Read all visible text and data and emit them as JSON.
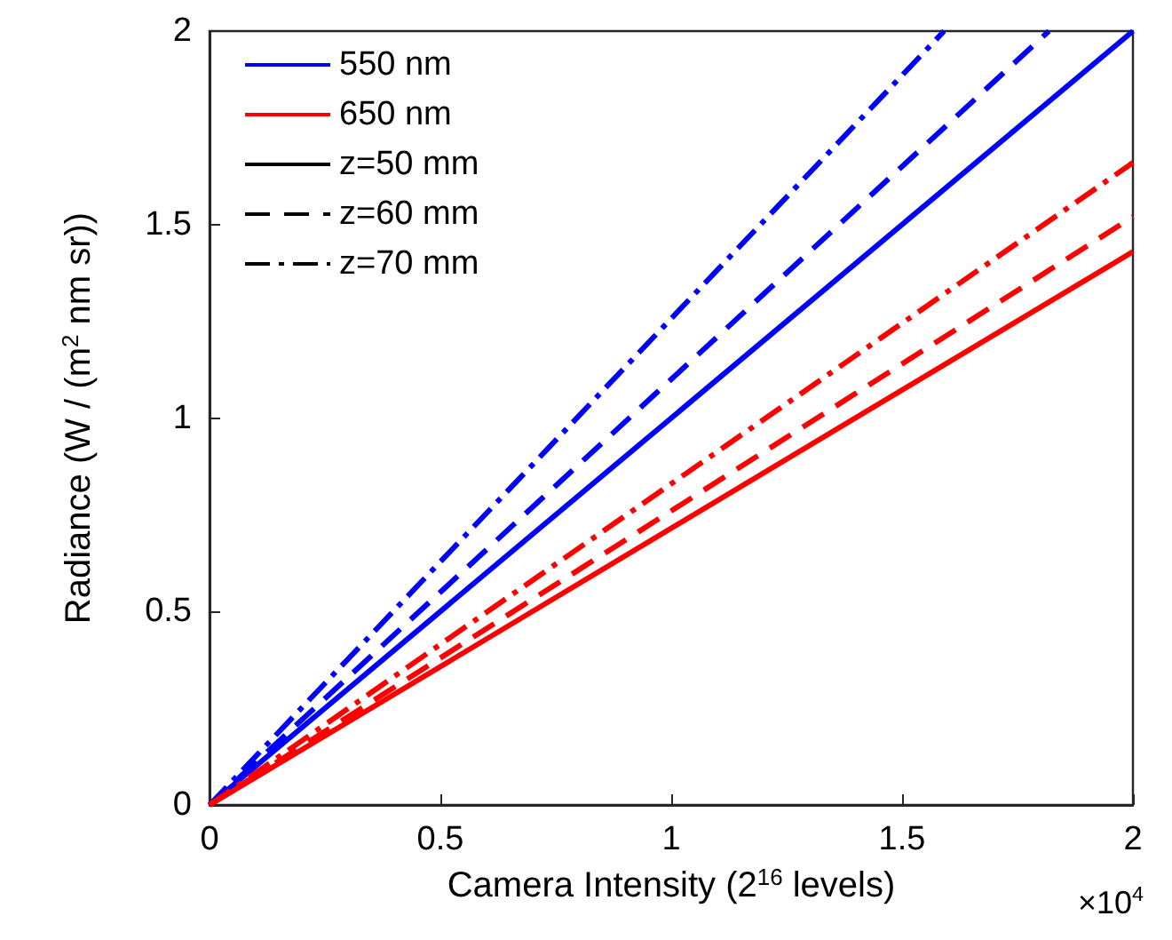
{
  "chart_data": {
    "type": "line",
    "xlabel": "Camera Intensity (2$^{16}$ levels)",
    "ylabel": "Radiance (W / (m$^{2}$ nm sr))",
    "xlim": [
      0,
      2
    ],
    "ylim": [
      0,
      2
    ],
    "xticks": [
      0,
      0.5,
      1,
      1.5,
      2
    ],
    "yticks": [
      0,
      0.5,
      1,
      1.5,
      2
    ],
    "grid": false,
    "legend": "top left",
    "marker": "none",
    "annotations": [
      "×10$^{4}$"
    ],
    "series": [
      {
        "color": "#0000ff",
        "line_style": "solid",
        "x": [
          0,
          2
        ],
        "values": [
          0,
          2
        ]
      },
      {
        "color": "#0000ff",
        "line_style": "dashed",
        "x": [
          0,
          1.818
        ],
        "values": [
          0,
          2
        ]
      },
      {
        "color": "#0000ff",
        "line_style": "dashdot",
        "x": [
          0,
          1.591
        ],
        "values": [
          0,
          2
        ]
      },
      {
        "color": "#ff0000",
        "line_style": "solid",
        "x": [
          0,
          2
        ],
        "values": [
          0,
          1.43
        ]
      },
      {
        "color": "#ff0000",
        "line_style": "dashed",
        "x": [
          0,
          2
        ],
        "values": [
          0,
          1.52
        ]
      },
      {
        "color": "#ff0000",
        "line_style": "dashdot",
        "x": [
          0,
          2
        ],
        "values": [
          0,
          1.66
        ]
      },
      {
        "name": "550 nm",
        "color": "#0000ff",
        "line_style": "solid"
      },
      {
        "name": "650 nm",
        "color": "#ff0000",
        "line_style": "solid"
      },
      {
        "name": "z=50 mm",
        "color": "#000000",
        "line_style": "solid"
      },
      {
        "name": "z=60 mm",
        "color": "#000000",
        "line_style": "dashed"
      },
      {
        "name": "z=70 mm",
        "color": "#000000",
        "line_style": "dashdot"
      }
    ]
  }
}
